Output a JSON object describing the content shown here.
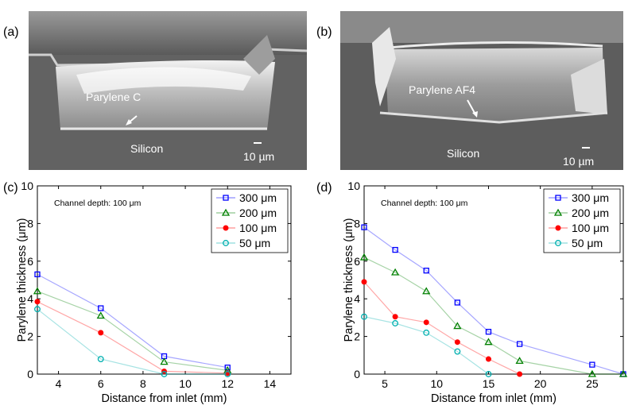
{
  "panels": {
    "a": {
      "letter": "(a)",
      "material_label": "Parylene C",
      "substrate_label": "Silicon",
      "scale_label": "10 µm"
    },
    "b": {
      "letter": "(b)",
      "material_label": "Parylene AF4",
      "substrate_label": "Silicon",
      "scale_label": "10 µm"
    },
    "c": {
      "letter": "(c)"
    },
    "d": {
      "letter": "(d)"
    }
  },
  "colors": {
    "s300": "#0000ff",
    "s200": "#008000",
    "s100": "#ff0000",
    "s50": "#00b0b0"
  },
  "chart_data": [
    {
      "id": "c",
      "type": "line",
      "ylabel": "Parylene thickness (μm)",
      "xlabel": "Distance from inlet (mm)",
      "annotation": "Channel depth: 100 μm",
      "xlim": [
        3,
        15
      ],
      "ylim": [
        0,
        10
      ],
      "xticks": [
        4,
        6,
        8,
        10,
        12,
        14
      ],
      "yticks": [
        0,
        2,
        4,
        6,
        8,
        10
      ],
      "legend_position": "top-right",
      "series": [
        {
          "name": "300 μm",
          "marker": "square",
          "color_key": "s300",
          "x": [
            3,
            6,
            9,
            12
          ],
          "y": [
            5.3,
            3.5,
            0.95,
            0.35
          ]
        },
        {
          "name": "200 μm",
          "marker": "triangle",
          "color_key": "s200",
          "x": [
            3,
            6,
            9,
            12
          ],
          "y": [
            4.4,
            3.1,
            0.65,
            0.2
          ]
        },
        {
          "name": "100 μm",
          "marker": "dot",
          "color_key": "s100",
          "x": [
            3,
            6,
            9,
            12
          ],
          "y": [
            3.85,
            2.2,
            0.15,
            0.05
          ]
        },
        {
          "name": "50 μm",
          "marker": "circle",
          "color_key": "s50",
          "x": [
            3,
            6,
            9,
            12
          ],
          "y": [
            3.45,
            0.8,
            0.0,
            0.0
          ]
        }
      ]
    },
    {
      "id": "d",
      "type": "line",
      "ylabel": "Parylene thickness (μm)",
      "xlabel": "Distance from inlet (mm)",
      "annotation": "Channel depth: 100 μm",
      "xlim": [
        3,
        28
      ],
      "ylim": [
        0,
        10
      ],
      "xticks": [
        5,
        10,
        15,
        20,
        25
      ],
      "yticks": [
        0,
        2,
        4,
        6,
        8,
        10
      ],
      "legend_position": "top-right",
      "series": [
        {
          "name": "300 μm",
          "marker": "square",
          "color_key": "s300",
          "x": [
            3,
            6,
            9,
            12,
            15,
            18,
            25,
            28
          ],
          "y": [
            7.8,
            6.6,
            5.5,
            3.8,
            2.25,
            1.6,
            0.5,
            0.0
          ]
        },
        {
          "name": "200 μm",
          "marker": "triangle",
          "color_key": "s200",
          "x": [
            3,
            6,
            9,
            12,
            15,
            18,
            25,
            28
          ],
          "y": [
            6.2,
            5.4,
            4.4,
            2.55,
            1.7,
            0.7,
            0.0,
            0.0
          ]
        },
        {
          "name": "100 μm",
          "marker": "dot",
          "color_key": "s100",
          "x": [
            3,
            6,
            9,
            12,
            15,
            18
          ],
          "y": [
            4.9,
            3.05,
            2.75,
            1.7,
            0.8,
            0.0
          ]
        },
        {
          "name": "50 μm",
          "marker": "circle",
          "color_key": "s50",
          "x": [
            3,
            6,
            9,
            12,
            15
          ],
          "y": [
            3.05,
            2.7,
            2.2,
            1.2,
            0.0
          ]
        }
      ]
    }
  ]
}
